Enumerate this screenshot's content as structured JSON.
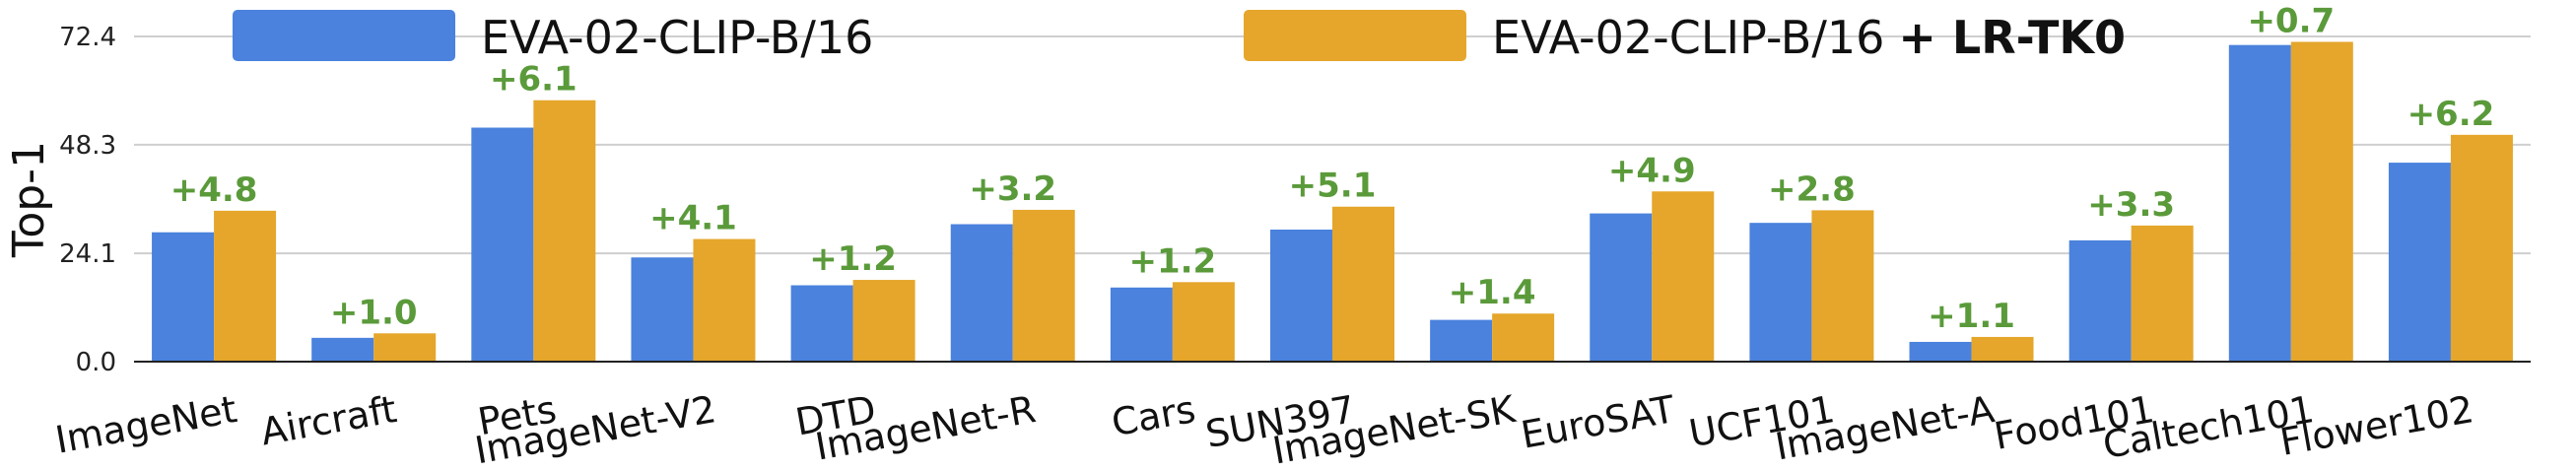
{
  "chart_data": {
    "type": "bar",
    "ylabel": "Top-1",
    "ylim": [
      0,
      72.4
    ],
    "yticks": [
      "0.0",
      "24.1",
      "48.3",
      "72.4"
    ],
    "grid": true,
    "legend_position": "top",
    "categories": [
      "ImageNet",
      "Aircraft",
      "Pets",
      "ImageNet-V2",
      "DTD",
      "ImageNet-R",
      "Cars",
      "SUN397",
      "ImageNet-SK",
      "EuroSAT",
      "UCF101",
      "ImageNet-A",
      "Food101",
      "Caltech101",
      "Flower102"
    ],
    "series": [
      {
        "name": "EVA-02-CLIP-B/16",
        "color": "#4a82dd",
        "values": [
          28.8,
          5.3,
          52.1,
          23.2,
          17.0,
          30.6,
          16.5,
          29.4,
          9.3,
          33.0,
          30.9,
          4.4,
          27.0,
          70.5,
          44.3
        ]
      },
      {
        "name_prefix": "EVA-02-CLIP-B/16",
        "name_bold": "+ LR-TK0",
        "color": "#e5a62b",
        "values": [
          33.6,
          6.3,
          58.2,
          27.3,
          18.2,
          33.8,
          17.7,
          34.5,
          10.7,
          37.9,
          33.7,
          5.5,
          30.3,
          71.2,
          50.5
        ]
      }
    ],
    "annotations": [
      "+4.8",
      "+1.0",
      "+6.1",
      "+4.1",
      "+1.2",
      "+3.2",
      "+1.2",
      "+5.1",
      "+1.4",
      "+4.9",
      "+2.8",
      "+1.1",
      "+3.3",
      "+0.7",
      "+6.2"
    ],
    "annotation_color": "#5a9a3a"
  }
}
